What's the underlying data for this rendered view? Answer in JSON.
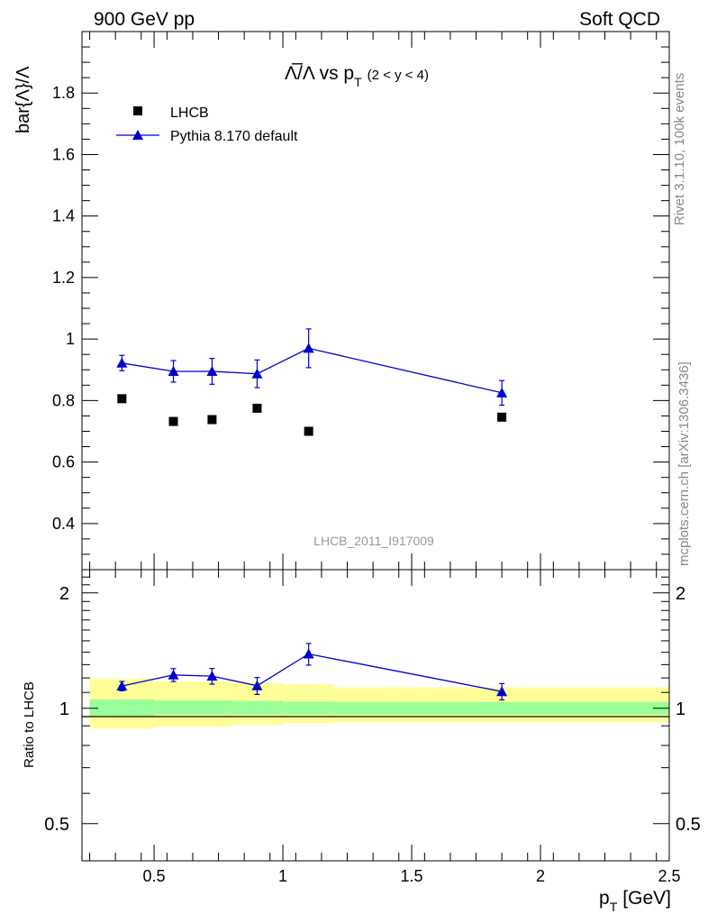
{
  "header": {
    "left": "900 GeV pp",
    "right": "Soft QCD"
  },
  "side_labels": {
    "rivet": "Rivet 3.1.10,  100k events",
    "source": "mcplots.cern.ch [arXiv:1306.3436]"
  },
  "watermark": "LHCB_2011_I917009",
  "chart_data": [
    {
      "type": "scatter",
      "title": "Λ̅/Λ vs p",
      "title_sub": "T",
      "title_suffix": "(2 < y < 4)",
      "ylabel": "bar{Λ}/Λ",
      "xlim": [
        0.22,
        2.5
      ],
      "ylim": [
        0.25,
        2.0
      ],
      "yticks": [
        "0.4",
        "0.6",
        "0.8",
        "1",
        "1.2",
        "1.4",
        "1.6",
        "1.8"
      ],
      "legend_position": "top-left",
      "series": [
        {
          "name": "LHCB",
          "color": "#000000",
          "marker": "square",
          "points": [
            {
              "x": 0.375,
              "y": 0.806
            },
            {
              "x": 0.575,
              "y": 0.732
            },
            {
              "x": 0.725,
              "y": 0.738
            },
            {
              "x": 0.9,
              "y": 0.775
            },
            {
              "x": 1.1,
              "y": 0.7
            },
            {
              "x": 1.85,
              "y": 0.746
            }
          ]
        },
        {
          "name": "Pythia 8.170 default",
          "color": "#0000cc",
          "marker": "triangle",
          "points": [
            {
              "x": 0.375,
              "y": 0.922,
              "err": 0.025
            },
            {
              "x": 0.575,
              "y": 0.895,
              "err": 0.035
            },
            {
              "x": 0.725,
              "y": 0.895,
              "err": 0.042
            },
            {
              "x": 0.9,
              "y": 0.887,
              "err": 0.045
            },
            {
              "x": 1.1,
              "y": 0.97,
              "err": 0.063
            },
            {
              "x": 1.85,
              "y": 0.825,
              "err": 0.04
            }
          ]
        }
      ]
    },
    {
      "type": "scatter",
      "ylabel": "Ratio to LHCB",
      "xlabel": "p",
      "xlabel_sub": "T",
      "xlabel_suffix": "[GeV]",
      "xlim": [
        0.22,
        2.5
      ],
      "ylim": [
        0.4,
        2.3
      ],
      "yscale": "log",
      "xticks": [
        "0.5",
        "1",
        "1.5",
        "2",
        "2.5"
      ],
      "yticks": [
        "0.5",
        "1",
        "2"
      ],
      "bands": [
        {
          "x0": 0.25,
          "x1": 0.5,
          "inner": [
            0.957,
            1.055
          ],
          "outer": [
            0.885,
            1.195
          ]
        },
        {
          "x0": 0.5,
          "x1": 0.65,
          "inner": [
            0.962,
            1.048
          ],
          "outer": [
            0.895,
            1.175
          ]
        },
        {
          "x0": 0.65,
          "x1": 0.8,
          "inner": [
            0.962,
            1.048
          ],
          "outer": [
            0.895,
            1.175
          ]
        },
        {
          "x0": 0.8,
          "x1": 1.0,
          "inner": [
            0.962,
            1.045
          ],
          "outer": [
            0.905,
            1.165
          ]
        },
        {
          "x0": 1.0,
          "x1": 1.2,
          "inner": [
            0.962,
            1.04
          ],
          "outer": [
            0.915,
            1.155
          ]
        },
        {
          "x0": 1.2,
          "x1": 2.5,
          "inner": [
            0.962,
            1.038
          ],
          "outer": [
            0.92,
            1.135
          ]
        }
      ],
      "series": [
        {
          "name": "Pythia 8.170 default",
          "color": "#0000cc",
          "marker": "triangle",
          "points": [
            {
              "x": 0.375,
              "y": 1.143,
              "err": 0.032
            },
            {
              "x": 0.575,
              "y": 1.222,
              "err": 0.047
            },
            {
              "x": 0.725,
              "y": 1.213,
              "err": 0.057
            },
            {
              "x": 0.9,
              "y": 1.145,
              "err": 0.058
            },
            {
              "x": 1.1,
              "y": 1.386,
              "err": 0.09
            },
            {
              "x": 1.85,
              "y": 1.106,
              "err": 0.054
            }
          ]
        }
      ]
    }
  ]
}
